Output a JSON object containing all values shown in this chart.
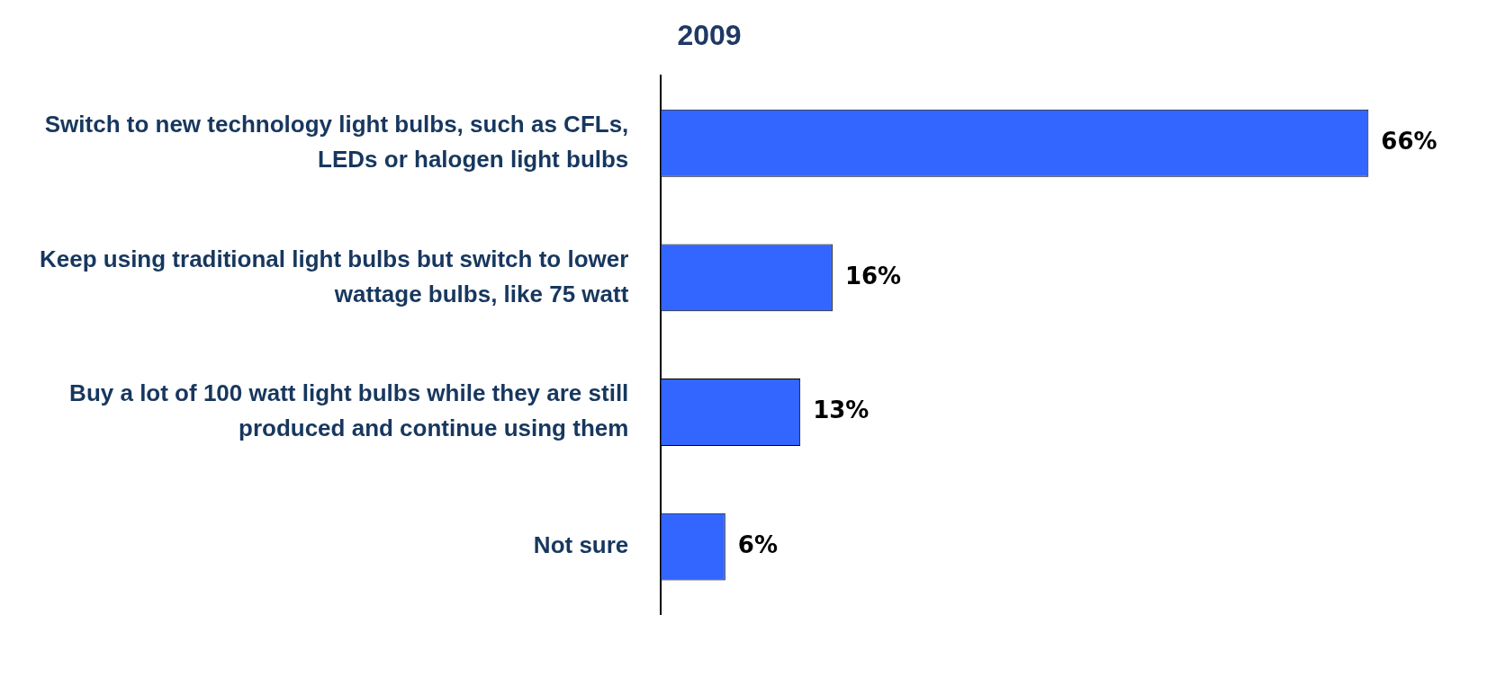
{
  "chart_data": {
    "type": "bar",
    "orientation": "horizontal",
    "title": "2009",
    "categories": [
      "Switch to new technology light bulbs, such as CFLs, LEDs or halogen light bulbs",
      "Keep using traditional light bulbs but switch to lower wattage bulbs, like 75 watt",
      "Buy a lot of 100 watt light bulbs while they are still produced and continue using them",
      "Not sure"
    ],
    "values": [
      66,
      16,
      13,
      6
    ],
    "value_labels": [
      "66%",
      "16%",
      "13%",
      "6%"
    ],
    "color": "#3366ff",
    "grid": false,
    "legend": false,
    "tick_labels": "y"
  }
}
